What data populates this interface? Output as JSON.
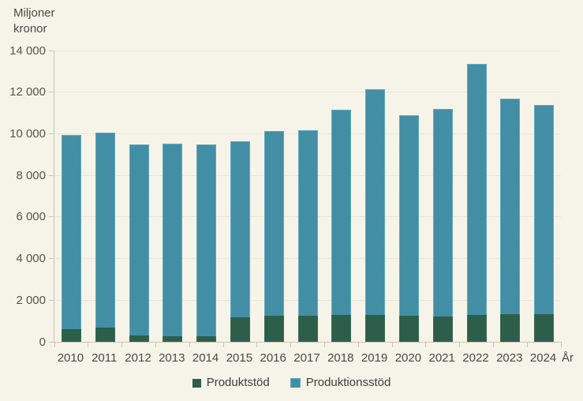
{
  "y_axis": {
    "title": "Miljoner\nkronor"
  },
  "x_axis": {
    "title": "År"
  },
  "chart_data": {
    "type": "bar",
    "stacked": true,
    "title": "",
    "ylabel": "Miljoner kronor",
    "xlabel": "År",
    "categories": [
      "2010",
      "2011",
      "2012",
      "2013",
      "2014",
      "2015",
      "2016",
      "2017",
      "2018",
      "2019",
      "2020",
      "2021",
      "2022",
      "2023",
      "2024"
    ],
    "series": [
      {
        "name": "Produktstöd",
        "color": "#2d5e49",
        "pattern": "solid",
        "values": [
          600,
          670,
          310,
          260,
          280,
          1180,
          1240,
          1260,
          1300,
          1290,
          1270,
          1230,
          1300,
          1320,
          1310
        ]
      },
      {
        "name": "Produktionsstöd",
        "color": "#428ea5",
        "pattern": "checker",
        "pattern_colors": [
          "#5ba3b8",
          "#2a7a92"
        ],
        "values": [
          9350,
          9380,
          9160,
          9260,
          9220,
          8470,
          8910,
          8920,
          9850,
          10860,
          9630,
          9970,
          12050,
          10380,
          10090
        ]
      }
    ],
    "totals": [
      9950,
      10050,
      9470,
      9520,
      9500,
      9650,
      10150,
      10180,
      11150,
      12150,
      10900,
      11200,
      13350,
      11700,
      11400
    ],
    "ylim": [
      0,
      14000
    ],
    "ytick_step": 2000,
    "ytick_values": [
      0,
      2000,
      4000,
      6000,
      8000,
      10000,
      12000,
      14000
    ],
    "ytick_labels": [
      "0",
      "2 000",
      "4 000",
      "6 000",
      "8 000",
      "10 000",
      "12 000",
      "14 000"
    ],
    "grid": true,
    "legend_position": "bottom"
  }
}
